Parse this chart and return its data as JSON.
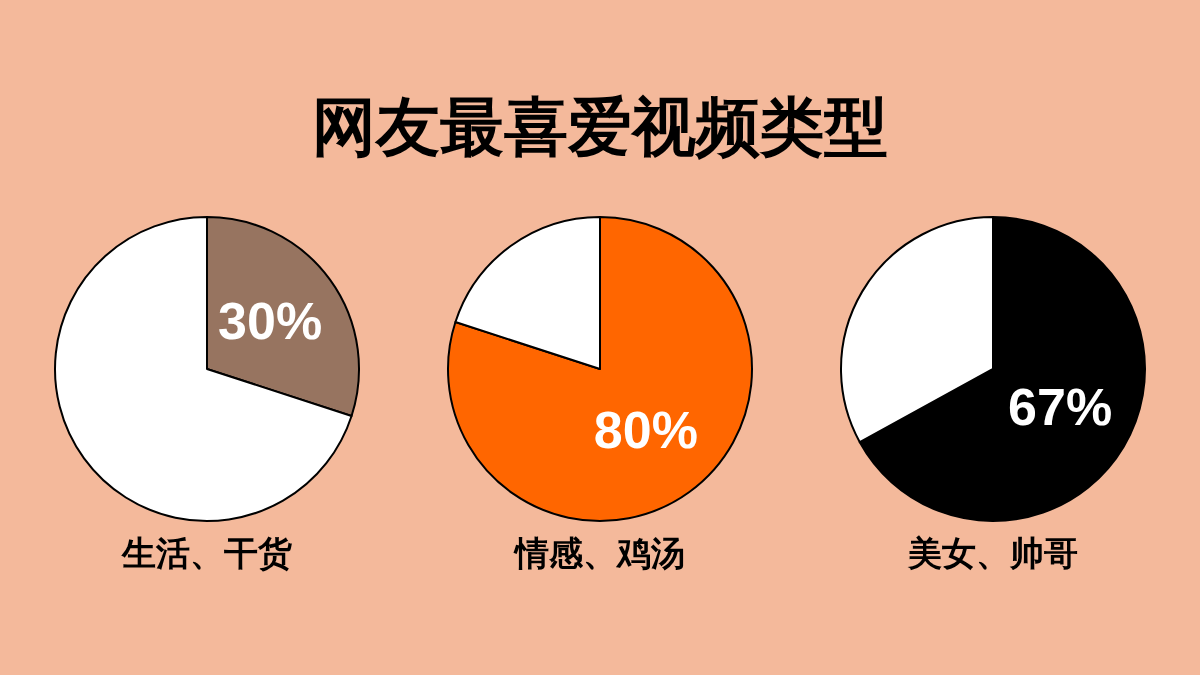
{
  "chart_data": [
    {
      "type": "pie",
      "xlabel": "生活、干货",
      "categories": [
        null,
        null
      ],
      "values": [
        30,
        70
      ],
      "colors": [
        "#977460",
        "#ffffff"
      ],
      "value_labels": [
        "30%",
        null
      ]
    },
    {
      "type": "pie",
      "title": "网友最喜爱视频类型",
      "xlabel": "情感、鸡汤",
      "categories": [
        null,
        null
      ],
      "values": [
        80,
        20
      ],
      "colors": [
        "#ff6600",
        "#ffffff"
      ],
      "value_labels": [
        "80%",
        null
      ]
    },
    {
      "type": "pie",
      "xlabel": "美女、帅哥",
      "categories": [
        null,
        null
      ],
      "values": [
        67,
        33
      ],
      "colors": [
        "#000000",
        "#ffffff"
      ],
      "value_labels": [
        "67%",
        null
      ]
    }
  ]
}
